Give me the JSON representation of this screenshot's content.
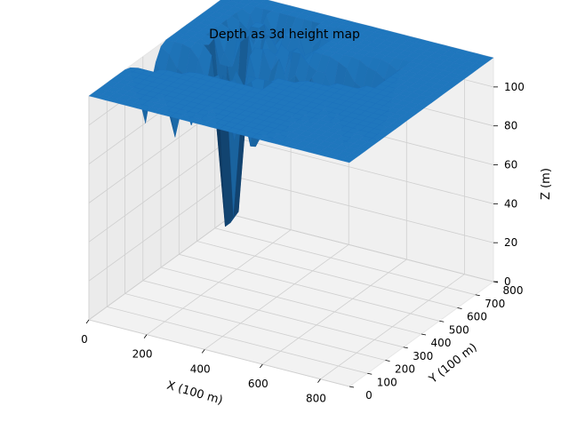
{
  "chart_data": {
    "type": "surface3d",
    "title": "Depth as 3d height map",
    "xlabel": "X (100 m)",
    "ylabel": "Y (100 m)",
    "zlabel": "Z (m)",
    "xlim": [
      0,
      900
    ],
    "ylim": [
      0,
      800
    ],
    "zlim": [
      0,
      115
    ],
    "x_ticks": [
      "0",
      "200",
      "400",
      "600",
      "800"
    ],
    "y_ticks": [
      "0",
      "100",
      "200",
      "300",
      "400",
      "500",
      "600",
      "700",
      "800"
    ],
    "z_ticks": [
      "0",
      "20",
      "40",
      "60",
      "80",
      "100"
    ],
    "plateau_z": 115,
    "deepest_point": {
      "x": 180,
      "y": 500,
      "z": 0
    },
    "surface_color": "#1f77b4",
    "grid": true
  }
}
